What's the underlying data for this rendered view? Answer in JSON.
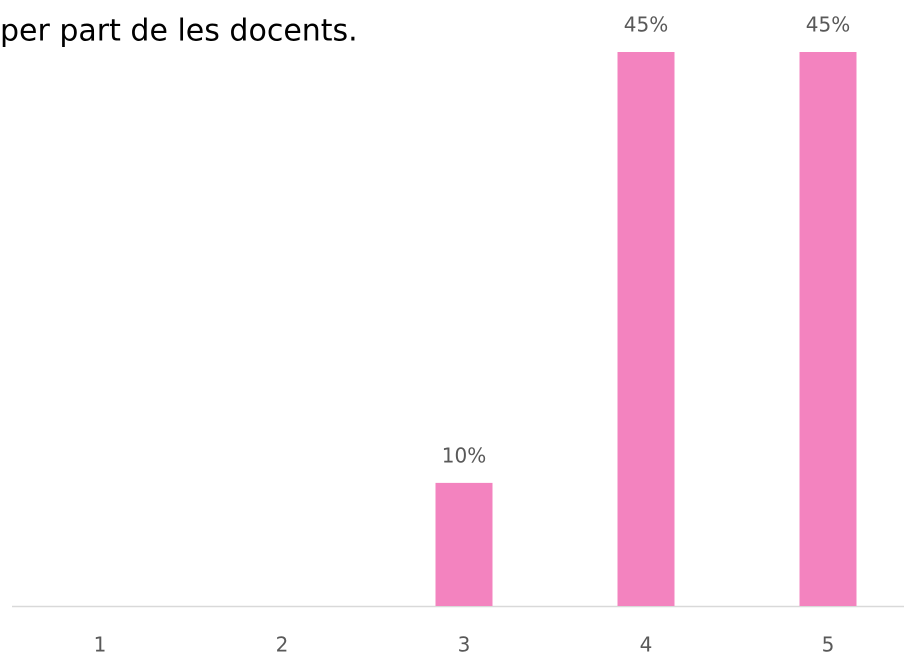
{
  "chart_data": {
    "type": "bar",
    "title": "per part de les docents.",
    "categories": [
      "1",
      "2",
      "3",
      "4",
      "5"
    ],
    "values": [
      0,
      0,
      10,
      45,
      45
    ],
    "value_labels": [
      null,
      null,
      "10%",
      "45%",
      "45%"
    ],
    "color": "#f383bf"
  }
}
